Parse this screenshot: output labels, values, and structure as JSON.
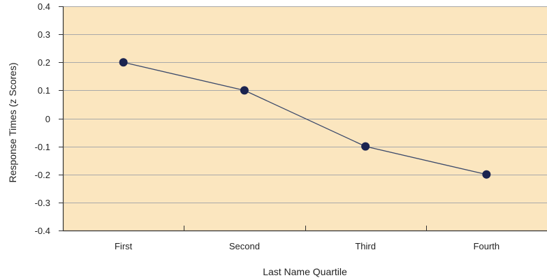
{
  "chart_data": {
    "type": "line",
    "categories": [
      "First",
      "Second",
      "Third",
      "Fourth"
    ],
    "series": [
      {
        "values": [
          0.2,
          0.1,
          -0.1,
          -0.2
        ]
      }
    ],
    "xlabel": "Last Name Quartile",
    "ylabel": "Response Times (z  Scores)",
    "ylim": [
      -0.4,
      0.4
    ],
    "yticks": [
      "0.4",
      "0.3",
      "0.2",
      "0.1",
      "0",
      "-0.1",
      "-0.2",
      "-0.3",
      "-0.4"
    ],
    "ytick_values": [
      0.4,
      0.3,
      0.2,
      0.1,
      0,
      -0.1,
      -0.2,
      -0.3,
      -0.4
    ],
    "grid": true,
    "colors": {
      "plot_background": "#fbe6bf",
      "gridline": "#a9a9a9",
      "axis": "#333333",
      "line": "#3c4a6b",
      "marker": "#1b2450"
    }
  }
}
